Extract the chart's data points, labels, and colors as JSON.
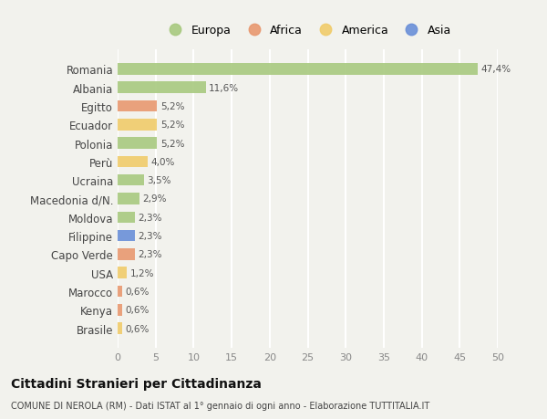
{
  "countries": [
    "Romania",
    "Albania",
    "Egitto",
    "Ecuador",
    "Polonia",
    "Perù",
    "Ucraina",
    "Macedonia d/N.",
    "Moldova",
    "Filippine",
    "Capo Verde",
    "USA",
    "Marocco",
    "Kenya",
    "Brasile"
  ],
  "values": [
    47.4,
    11.6,
    5.2,
    5.2,
    5.2,
    4.0,
    3.5,
    2.9,
    2.3,
    2.3,
    2.3,
    1.2,
    0.6,
    0.6,
    0.6
  ],
  "labels": [
    "47,4%",
    "11,6%",
    "5,2%",
    "5,2%",
    "5,2%",
    "4,0%",
    "3,5%",
    "2,9%",
    "2,3%",
    "2,3%",
    "2,3%",
    "1,2%",
    "0,6%",
    "0,6%",
    "0,6%"
  ],
  "continents": [
    "Europa",
    "Europa",
    "Africa",
    "America",
    "Europa",
    "America",
    "Europa",
    "Europa",
    "Europa",
    "Asia",
    "Africa",
    "America",
    "Africa",
    "Africa",
    "America"
  ],
  "continent_colors": {
    "Europa": "#a8c97f",
    "Africa": "#e89870",
    "America": "#f0cc6a",
    "Asia": "#6a8fd8"
  },
  "legend_order": [
    "Europa",
    "Africa",
    "America",
    "Asia"
  ],
  "legend_colors": [
    "#a8c97f",
    "#e89870",
    "#f0cc6a",
    "#6a8fd8"
  ],
  "xlim": [
    0,
    50
  ],
  "xticks": [
    0,
    5,
    10,
    15,
    20,
    25,
    30,
    35,
    40,
    45,
    50
  ],
  "title": "Cittadini Stranieri per Cittadinanza",
  "subtitle": "COMUNE DI NEROLA (RM) - Dati ISTAT al 1° gennaio di ogni anno - Elaborazione TUTTITALIA.IT",
  "background_color": "#f2f2ed",
  "grid_color": "#ffffff",
  "bar_height": 0.62
}
